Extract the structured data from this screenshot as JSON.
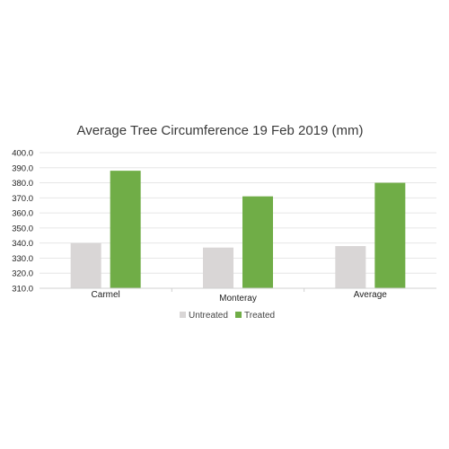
{
  "chart_data": {
    "type": "bar",
    "title": "Average Tree Circumference 19 Feb 2019 (mm)",
    "categories": [
      "Carmel",
      "Monteray",
      "Average"
    ],
    "series": [
      {
        "name": "Untreated",
        "color": "#d9d6d6",
        "values": [
          340,
          337,
          338
        ]
      },
      {
        "name": "Treated",
        "color": "#70ad47",
        "values": [
          388,
          371,
          380
        ]
      }
    ],
    "ylim": [
      310,
      400
    ],
    "yticks": [
      "310.0",
      "320.0",
      "330.0",
      "340.0",
      "350.0",
      "360.0",
      "370.0",
      "380.0",
      "390.0",
      "400.0"
    ],
    "xlabel": "",
    "ylabel": "",
    "grid": true,
    "legend_position": "bottom"
  }
}
